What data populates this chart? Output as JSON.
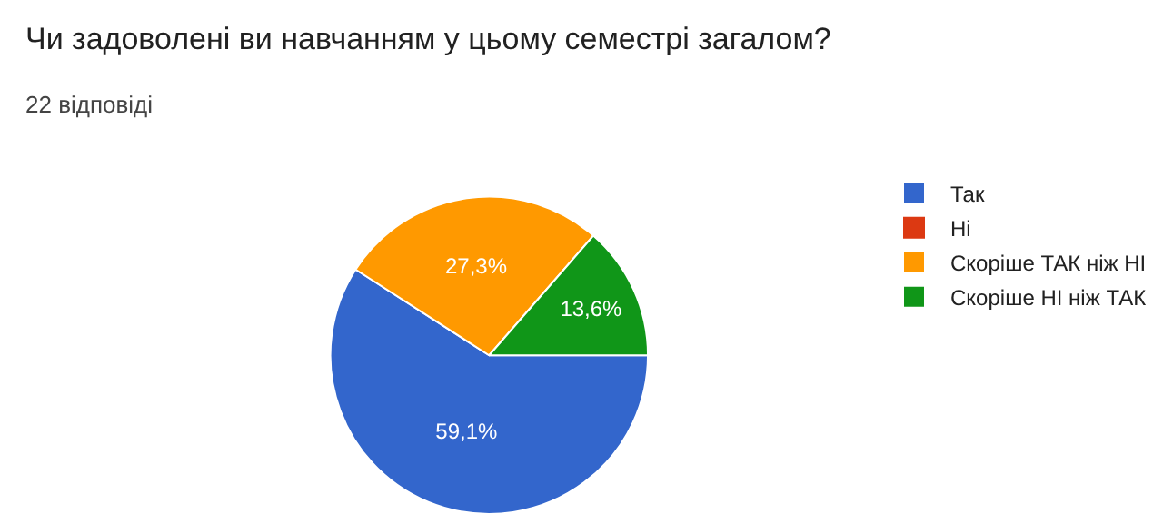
{
  "chart_data": {
    "type": "pie",
    "title": "Чи задоволені ви навчанням у цьому семестрі загалом?",
    "subtitle": "22 відповіді",
    "categories": [
      "Так",
      "Ні",
      "Скоріше ТАК ніж НІ",
      "Скоріше НІ ніж ТАК"
    ],
    "values": [
      59.1,
      0,
      27.3,
      13.6
    ],
    "colors": [
      "#3366cc",
      "#dc3912",
      "#ff9900",
      "#109618"
    ],
    "value_labels": [
      "59,1%",
      null,
      "27,3%",
      "13,6%"
    ],
    "legend": "right"
  }
}
